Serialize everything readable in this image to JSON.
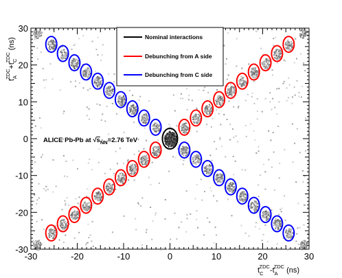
{
  "chart_data": {
    "type": "scatter",
    "x_axis": {
      "range": [
        -30,
        30
      ],
      "ticks": [
        "-30",
        "-20",
        "-10",
        "0",
        "10",
        "20",
        "30"
      ],
      "label_main_1": "t",
      "label_sup_1": "ZDC",
      "label_sub_1": "C",
      "label_main_2": "-t",
      "label_sup_2": "ZDC",
      "label_sub_2": "A",
      "label_unit": " (ns)"
    },
    "y_axis": {
      "range": [
        -30,
        30
      ],
      "ticks": [
        "-30",
        "-20",
        "-10",
        "0",
        "10",
        "20",
        "30"
      ],
      "label_main_1": "t",
      "label_sup_1": "ZDC",
      "label_sub_1": "A",
      "label_main_2": "+t",
      "label_sup_2": "ZDC",
      "label_sub_2": "C",
      "label_unit": " (ns)"
    },
    "legend": {
      "placement": "top-center",
      "entries": [
        {
          "label": "Nominal interactions",
          "color": "#000000"
        },
        {
          "label": "Debunching from A side",
          "color": "#ff0000"
        },
        {
          "label": "Debunching from C side",
          "color": "#0000ff"
        }
      ]
    },
    "annotation": {
      "prefix": "ALICE Pb-Pb at ",
      "sqrt": "√",
      "s": "s",
      "s_sub": "NN",
      "value": "=2.76 TeV"
    },
    "series": [
      {
        "name": "Nominal interactions",
        "color": "#000000",
        "points": [
          [
            0,
            0
          ]
        ]
      },
      {
        "name": "Debunching from A side",
        "color": "#ff0000",
        "points": [
          [
            -25.6,
            -25.6
          ],
          [
            -23.1,
            -23.1
          ],
          [
            -20.6,
            -20.6
          ],
          [
            -18.1,
            -18.1
          ],
          [
            -15.6,
            -15.6
          ],
          [
            -13.1,
            -13.1
          ],
          [
            -10.6,
            -10.6
          ],
          [
            -8.1,
            -8.1
          ],
          [
            -5.6,
            -5.6
          ],
          [
            -3.1,
            -3.1
          ],
          [
            3.1,
            3.1
          ],
          [
            5.6,
            5.6
          ],
          [
            8.1,
            8.1
          ],
          [
            10.6,
            10.6
          ],
          [
            13.1,
            13.1
          ],
          [
            15.6,
            15.6
          ],
          [
            18.1,
            18.1
          ],
          [
            20.6,
            20.6
          ],
          [
            23.1,
            23.1
          ],
          [
            25.6,
            25.6
          ]
        ]
      },
      {
        "name": "Debunching from C side",
        "color": "#0000ff",
        "points": [
          [
            -25.6,
            25.6
          ],
          [
            -23.1,
            23.1
          ],
          [
            -20.6,
            20.6
          ],
          [
            -18.1,
            18.1
          ],
          [
            -15.6,
            15.6
          ],
          [
            -13.1,
            13.1
          ],
          [
            -10.6,
            10.6
          ],
          [
            -8.1,
            8.1
          ],
          [
            -5.6,
            5.6
          ],
          [
            -3.1,
            3.1
          ],
          [
            3.1,
            -3.1
          ],
          [
            5.6,
            -5.6
          ],
          [
            8.1,
            -8.1
          ],
          [
            10.6,
            -10.6
          ],
          [
            13.1,
            -13.1
          ],
          [
            15.6,
            -15.6
          ],
          [
            18.1,
            -18.1
          ],
          [
            20.6,
            -20.6
          ],
          [
            23.1,
            -23.1
          ],
          [
            25.6,
            -25.6
          ]
        ]
      }
    ],
    "corner_clusters": [
      [
        -28.7,
        28.7
      ],
      [
        28.7,
        28.7
      ],
      [
        -28.7,
        -28.7
      ],
      [
        28.7,
        -28.7
      ]
    ],
    "grid": false
  }
}
